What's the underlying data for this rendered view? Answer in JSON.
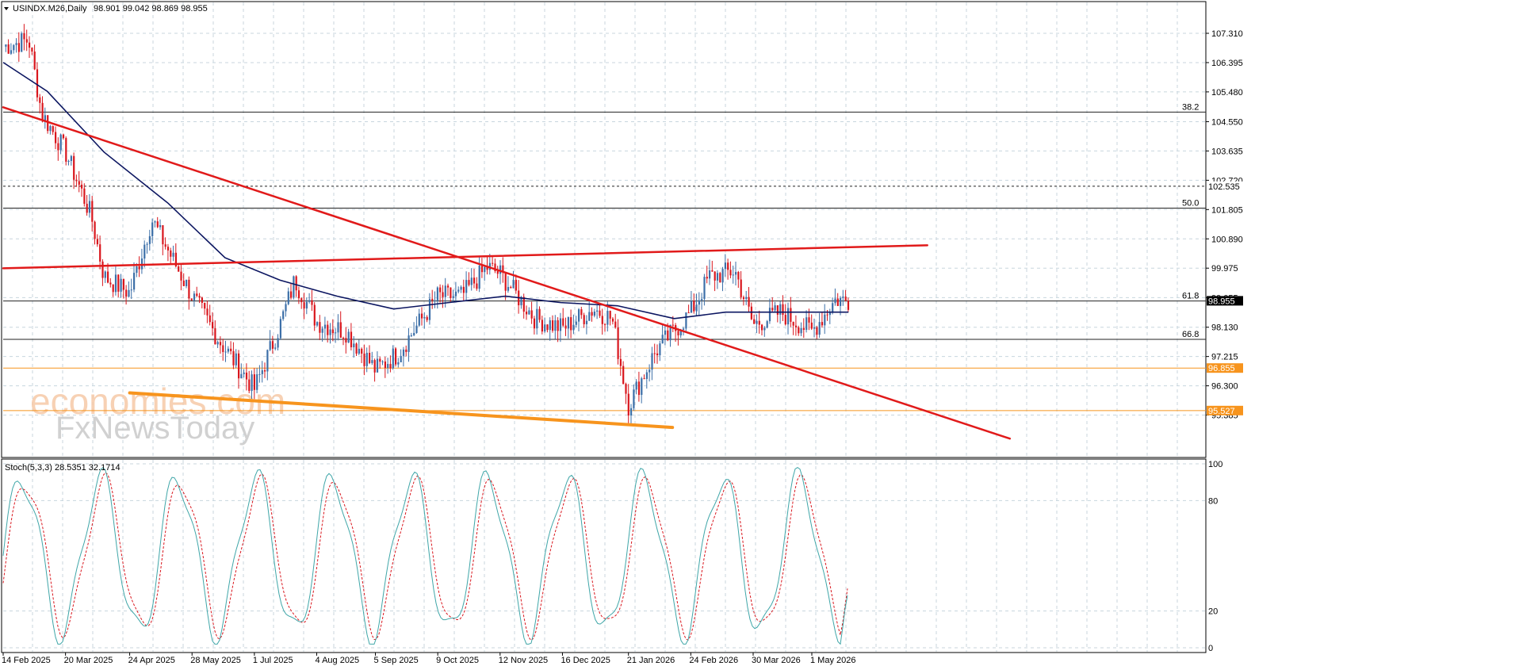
{
  "header": {
    "symbol_label": "USINDX.M26,Daily",
    "ohlc": "98.901 99.042 98.869 98.955"
  },
  "watermark": {
    "line1": "economies.com",
    "line2": "FxNewsToday"
  },
  "colors": {
    "bull": "#3c6fa8",
    "bear": "#d9161d",
    "ma": "#0b1560",
    "trend": "#e11a1a",
    "support": "#f7941d",
    "stoch_main": "#3fa6a8",
    "stoch_signal": "#d9161d",
    "grid": "#c8d6de"
  },
  "chart_data": [
    {
      "type": "line",
      "title": "USINDX.M26,Daily",
      "y_ticks": [
        "107.310",
        "106.395",
        "105.480",
        "104.550",
        "103.635",
        "102.720",
        "101.805",
        "100.890",
        "99.975",
        "99.055",
        "98.130",
        "97.215",
        "96.300",
        "95.385"
      ],
      "ylim": [
        95.0,
        107.8
      ],
      "x_ticks": [
        "14 Feb 2025",
        "20 Mar 2025",
        "24 Apr 2025",
        "28 May 2025",
        "1 Jul 2025",
        "4 Aug 2025",
        "5 Sep 2025",
        "9 Oct 2025",
        "12 Nov 2025",
        "16 Dec 2025",
        "21 Jan 2026",
        "24 Feb 2026",
        "30 Mar 2026",
        "1 May 2026"
      ],
      "last_price": "98.955",
      "close_series": [
        {
          "date": "14 Feb 2025",
          "value": 106.9
        },
        {
          "date": "28 Feb 2025",
          "value": 107.1
        },
        {
          "date": "7 Mar 2025",
          "value": 104.8
        },
        {
          "date": "20 Mar 2025",
          "value": 103.6
        },
        {
          "date": "3 Apr 2025",
          "value": 101.6
        },
        {
          "date": "10 Apr 2025",
          "value": 99.7
        },
        {
          "date": "24 Apr 2025",
          "value": 99.2
        },
        {
          "date": "6 May 2025",
          "value": 101.5
        },
        {
          "date": "28 May 2025",
          "value": 99.1
        },
        {
          "date": "12 Jun 2025",
          "value": 97.7
        },
        {
          "date": "1 Jul 2025",
          "value": 96.2
        },
        {
          "date": "15 Jul 2025",
          "value": 98.2
        },
        {
          "date": "23 Jul 2025",
          "value": 99.6
        },
        {
          "date": "4 Aug 2025",
          "value": 98.3
        },
        {
          "date": "20 Aug 2025",
          "value": 98.0
        },
        {
          "date": "5 Sep 2025",
          "value": 96.8
        },
        {
          "date": "17 Sep 2025",
          "value": 97.3
        },
        {
          "date": "9 Oct 2025",
          "value": 99.1
        },
        {
          "date": "22 Oct 2025",
          "value": 99.1
        },
        {
          "date": "5 Nov 2025",
          "value": 100.0
        },
        {
          "date": "12 Nov 2025",
          "value": 99.8
        },
        {
          "date": "1 Dec 2025",
          "value": 98.4
        },
        {
          "date": "16 Dec 2025",
          "value": 98.1
        },
        {
          "date": "2 Jan 2026",
          "value": 98.7
        },
        {
          "date": "12 Jan 2026",
          "value": 98.4
        },
        {
          "date": "21 Jan 2026",
          "value": 95.7
        },
        {
          "date": "5 Feb 2026",
          "value": 97.4
        },
        {
          "date": "24 Feb 2026",
          "value": 98.6
        },
        {
          "date": "6 Mar 2026",
          "value": 99.7
        },
        {
          "date": "20 Mar 2026",
          "value": 99.9
        },
        {
          "date": "30 Mar 2026",
          "value": 98.2
        },
        {
          "date": "14 Apr 2026",
          "value": 98.6
        },
        {
          "date": "1 May 2026",
          "value": 98.0
        },
        {
          "date": "14 May 2026",
          "value": 99.0
        },
        {
          "date": "21 May 2026",
          "value": 98.955
        }
      ],
      "moving_average": [
        {
          "date": "14 Feb 2025",
          "value": 106.4
        },
        {
          "date": "10 Mar 2025",
          "value": 105.5
        },
        {
          "date": "10 Apr 2025",
          "value": 103.6
        },
        {
          "date": "15 May 2025",
          "value": 102.0
        },
        {
          "date": "15 Jun 2025",
          "value": 100.3
        },
        {
          "date": "15 Jul 2025",
          "value": 99.6
        },
        {
          "date": "15 Aug 2025",
          "value": 99.1
        },
        {
          "date": "15 Sep 2025",
          "value": 98.7
        },
        {
          "date": "15 Oct 2025",
          "value": 98.9
        },
        {
          "date": "15 Nov 2025",
          "value": 99.1
        },
        {
          "date": "15 Dec 2025",
          "value": 98.9
        },
        {
          "date": "15 Jan 2026",
          "value": 98.8
        },
        {
          "date": "15 Feb 2026",
          "value": 98.4
        },
        {
          "date": "15 Mar 2026",
          "value": 98.6
        },
        {
          "date": "15 Apr 2026",
          "value": 98.6
        },
        {
          "date": "21 May 2026",
          "value": 98.6
        }
      ],
      "horizontal_levels": [
        {
          "label": "38.2",
          "value": 104.85
        },
        {
          "label": "50.0",
          "value": 101.85
        },
        {
          "label": "61.8",
          "value": 98.95
        },
        {
          "label": "66.8",
          "value": 97.75
        },
        {
          "label": "102.535",
          "value": 102.535,
          "style": "dashed"
        },
        {
          "label": "96.855",
          "value": 96.855,
          "style": "orange"
        },
        {
          "label": "95.527",
          "value": 95.527,
          "style": "orange"
        }
      ],
      "trendlines": [
        {
          "name": "falling",
          "from": {
            "date": "14 Feb 2025",
            "value": 105.0
          },
          "to": {
            "date": "17 Aug 2026",
            "value": 94.65
          }
        },
        {
          "name": "rising",
          "from": {
            "date": "14 Feb 2025",
            "value": 99.97
          },
          "to": {
            "date": "3 Jul 2026",
            "value": 100.69
          }
        },
        {
          "name": "support",
          "from": {
            "date": "24 Apr 2025",
            "value": 96.08
          },
          "to": {
            "date": "14 Feb 2026",
            "value": 95.0
          }
        }
      ]
    },
    {
      "type": "line",
      "title": "Stoch(5,3,3) 28.5351 32.1714",
      "y_ticks": [
        "100",
        "80",
        "20",
        "0"
      ],
      "ylim": [
        0,
        100
      ],
      "series": [
        {
          "name": "main",
          "value": 28.5351
        },
        {
          "name": "signal",
          "value": 32.1714
        }
      ]
    }
  ]
}
